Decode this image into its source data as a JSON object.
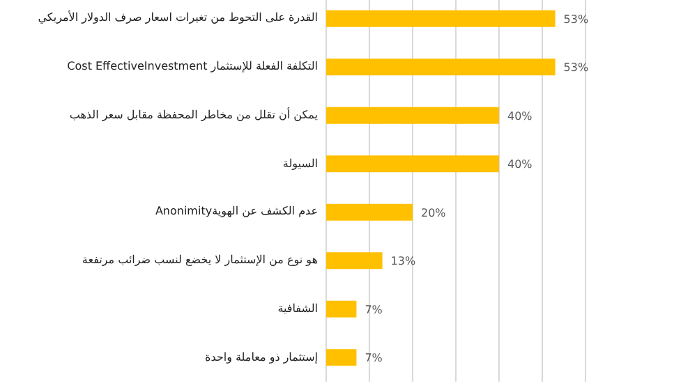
{
  "chart_data": {
    "type": "bar",
    "orientation": "horizontal",
    "categories": [
      "القدرة على التحوط من تغيرات اسعار صرف الدولار الأمريكي",
      "التكلفة الفعلة للإستثمار Cost EffectiveInvestment",
      "يمكن أن تقلل من مخاطر المحفظة مقابل سعر الذهب",
      "السيولة",
      "عدم الكشف عن الهويةAnonimity",
      "هو نوع من الإستثمار لا يخضع لنسب ضرائب مرتفعة",
      "الشفافية",
      "إستثمار ذو معاملة واحدة"
    ],
    "values": [
      53,
      53,
      40,
      40,
      20,
      13,
      7,
      7
    ],
    "value_labels": [
      "53%",
      "53%",
      "40%",
      "40%",
      "20%",
      "13%",
      "7%",
      "7%"
    ],
    "color": "#ffc000",
    "xlim": [
      0,
      60
    ],
    "xticks": [
      {
        "value": 0,
        "label": null
      },
      {
        "value": 10,
        "label": null
      },
      {
        "value": 20,
        "label": null
      },
      {
        "value": 30,
        "label": null
      },
      {
        "value": 40,
        "label": null
      },
      {
        "value": 50,
        "label": null
      },
      {
        "value": 60,
        "label": null
      }
    ],
    "tick_labels": "y",
    "grid": "x"
  }
}
